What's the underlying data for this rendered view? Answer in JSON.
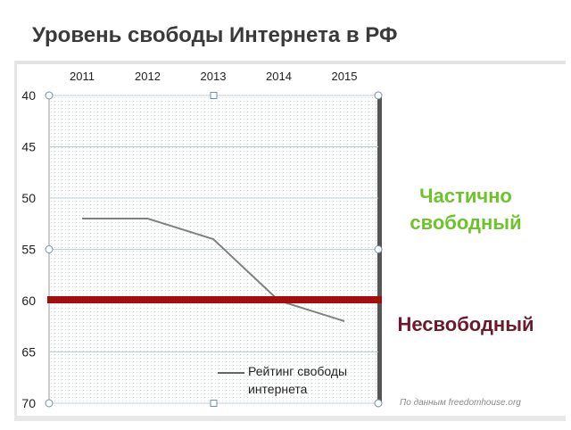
{
  "header": {
    "title": "Уровень свободы Интернета в РФ"
  },
  "zones": {
    "partially_free": "Частично свободный",
    "not_free": "Несвободный"
  },
  "source_note": "По данным freedomhouse.org",
  "colors": {
    "series_line": "#808080",
    "threshold": "#a50d0d",
    "partially_free_text": "#6cc32a",
    "not_free_text": "#6b1a2c",
    "grid": "#bcd0d4"
  },
  "chart_data": {
    "type": "line",
    "categories": [
      "2011",
      "2012",
      "2013",
      "2014",
      "2015"
    ],
    "series": [
      {
        "name": "Рейтинг свободы интернета",
        "values": [
          52,
          52,
          54,
          60,
          62
        ]
      }
    ],
    "y_ticks": [
      "40",
      "45",
      "50",
      "55",
      "60",
      "65",
      "70"
    ],
    "ylim": [
      40,
      70
    ],
    "y_inverted": true,
    "threshold": 60,
    "x_axis_position": "top",
    "legend_position": "bottom-right",
    "grid": true
  }
}
